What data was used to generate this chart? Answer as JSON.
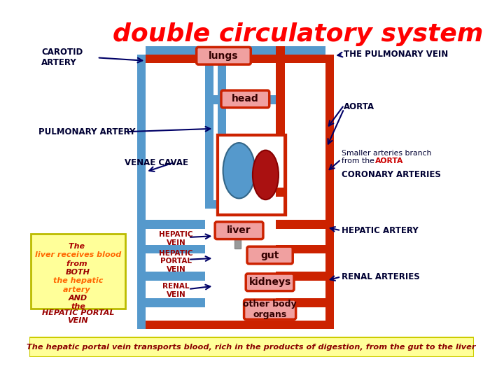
{
  "title": "double circulatory system",
  "title_color": "#FF0000",
  "title_fontsize": 26,
  "bg_color": "#FFFFFF",
  "bottom_bar_color": "#FFFF99",
  "red_color": "#CC2200",
  "blue_color": "#5599CC",
  "organ_fill": "#F0A0A0",
  "organ_border": "#CC2200",
  "heart_blue": "#5599CC",
  "heart_red": "#AA1100",
  "left_box_color": "#FFFF99",
  "left_box_border": "#BBBB00",
  "hepatic_portal_color": "#888888",
  "navy": "#000066",
  "dark_red_label": "#880000",
  "labels": {
    "carotid_artery": "CAROTID\nARTERY",
    "pulmonary_vein": "THE PULMONARY VEIN",
    "aorta": "AORTA",
    "pulmonary_artery": "PULMONARY ARTERY",
    "venae_cavae": "VENAE CAVAE",
    "coronary": "CORONARY ARTERIES",
    "hepatic_artery": "HEPATIC ARTERY",
    "renal_arteries": "RENAL ARTERIES",
    "hepatic_vein": "HEPATIC\nVEIN",
    "hepatic_portal": "HEPATIC\nPORTAL\nVEIN",
    "renal_vein": "RENAL\nVEIN"
  },
  "vessel_lw": 10
}
